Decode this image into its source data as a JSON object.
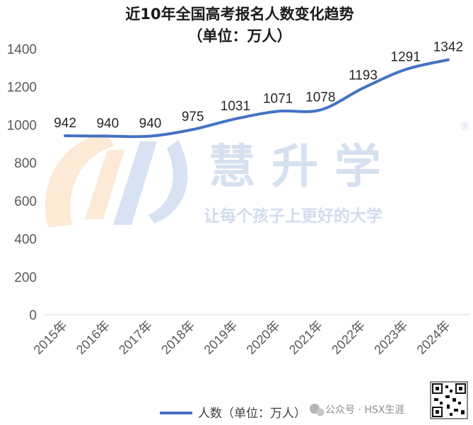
{
  "chart_data": {
    "type": "line",
    "title": "近10年全国高考报名人数变化趋势",
    "subtitle": "（单位：万人）",
    "categories": [
      "2015年",
      "2016年",
      "2017年",
      "2018年",
      "2019年",
      "2020年",
      "2021年",
      "2022年",
      "2023年",
      "2024年"
    ],
    "series": [
      {
        "name": "人数（单位：万人）",
        "values": [
          942,
          940,
          940,
          975,
          1031,
          1071,
          1078,
          1193,
          1291,
          1342
        ],
        "color": "#4472c4"
      }
    ],
    "data_labels": [
      "942",
      "940",
      "940",
      "975",
      "1031",
      "1071",
      "1078",
      "1193",
      "1291",
      "1342"
    ],
    "y_ticks": [
      0,
      200,
      400,
      600,
      800,
      1000,
      1200,
      1400
    ],
    "ylim": [
      0,
      1400
    ],
    "grid": false,
    "legend": "bottom"
  },
  "watermark": {
    "brand": "慧 升 学",
    "slogan": "让每个孩子上更好的大学",
    "registered": "®"
  },
  "footer": {
    "text": "公众号 · HSX生涯"
  }
}
